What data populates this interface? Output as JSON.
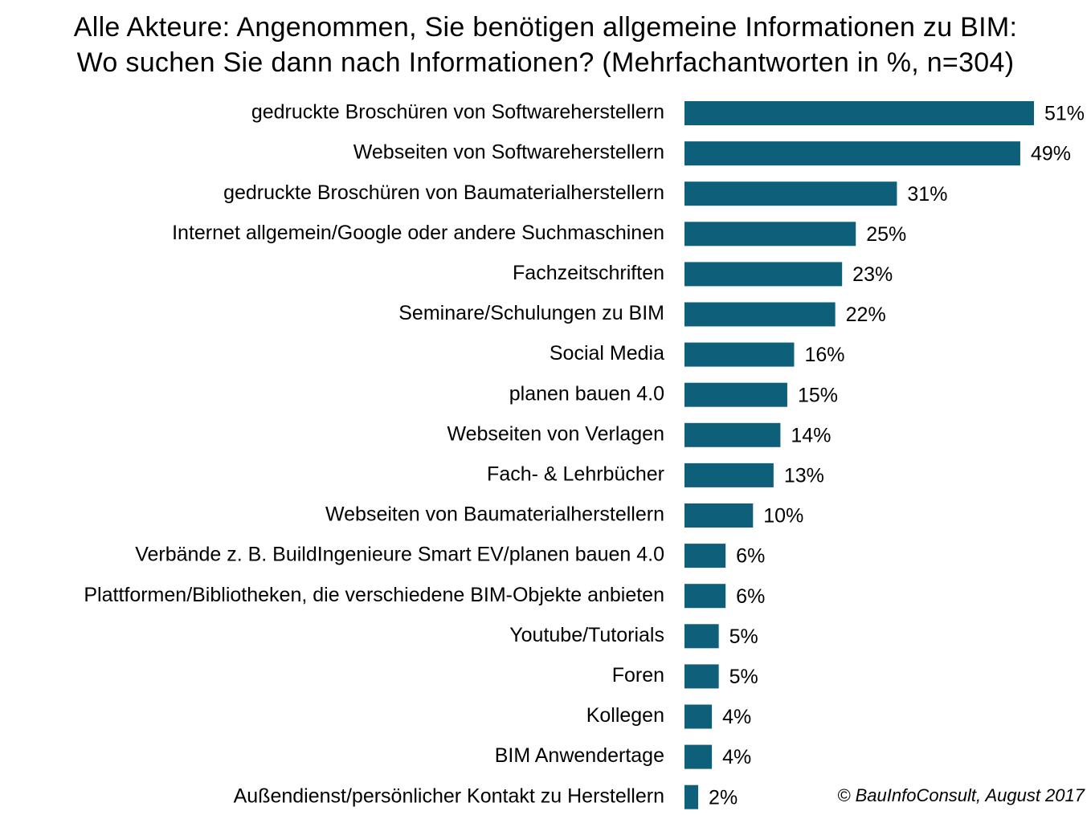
{
  "chart_data": {
    "type": "bar",
    "orientation": "horizontal",
    "title": "Alle Akteure: Angenommen, Sie benötigen allgemeine Informationen zu BIM:",
    "subtitle": "Wo suchen Sie dann nach Informationen? (Mehrfachantworten in %, n=304)",
    "categories": [
      "gedruckte Broschüren von Softwareherstellern",
      "Webseiten von Softwareherstellern",
      "gedruckte Broschüren von Baumaterialherstellern",
      "Internet allgemein/Google oder andere Suchmaschinen",
      "Fachzeitschriften",
      "Seminare/Schulungen zu BIM",
      "Social Media",
      "planen bauen 4.0",
      "Webseiten von Verlagen",
      "Fach- & Lehrbücher",
      "Webseiten von Baumaterialherstellern",
      "Verbände z. B. BuildIngenieure Smart EV/planen bauen 4.0",
      "Plattformen/Bibliotheken, die verschiedene BIM-Objekte anbieten",
      "Youtube/Tutorials",
      "Foren",
      "Kollegen",
      "BIM Anwendertage",
      "Außendienst/persönlicher Kontakt zu Herstellern"
    ],
    "values": [
      51,
      49,
      31,
      25,
      23,
      22,
      16,
      15,
      14,
      13,
      10,
      6,
      6,
      5,
      5,
      4,
      4,
      2
    ],
    "value_labels": [
      "51%",
      "49%",
      "31%",
      "25%",
      "23%",
      "22%",
      "16%",
      "15%",
      "14%",
      "13%",
      "10%",
      "6%",
      "6%",
      "5%",
      "5%",
      "4%",
      "4%",
      "2%"
    ],
    "unit": "%",
    "xlim": [
      0,
      51
    ],
    "bar_color": "#0e5f7a",
    "grid": false,
    "legend": "none"
  },
  "footnote": "© BauInfoConsult, August 2017"
}
